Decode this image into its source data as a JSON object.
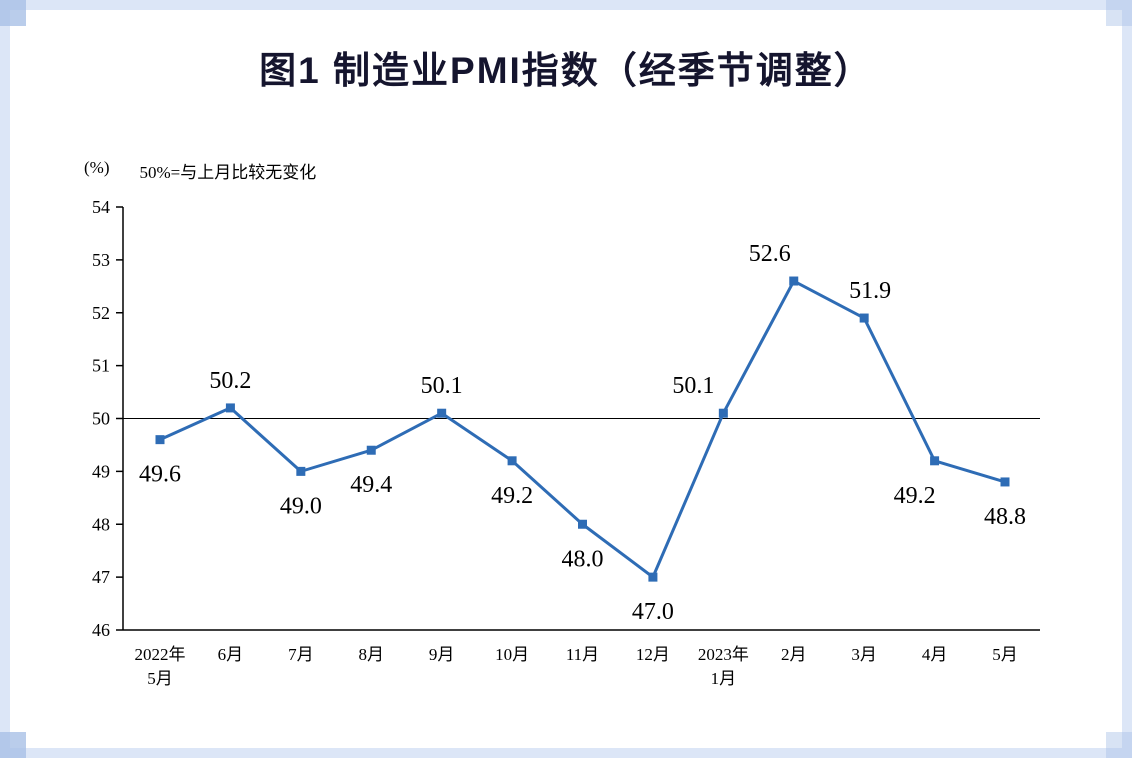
{
  "chart_data": {
    "type": "line",
    "title": "图1 制造业PMI指数（经季节调整）",
    "unit_label": "(%)",
    "note": "50%=与上月比较无变化",
    "categories": [
      [
        "2022年",
        "5月"
      ],
      [
        "6月"
      ],
      [
        "7月"
      ],
      [
        "8月"
      ],
      [
        "9月"
      ],
      [
        "10月"
      ],
      [
        "11月"
      ],
      [
        "12月"
      ],
      [
        "2023年",
        "1月"
      ],
      [
        "2月"
      ],
      [
        "3月"
      ],
      [
        "4月"
      ],
      [
        "5月"
      ]
    ],
    "values": [
      49.6,
      50.2,
      49.0,
      49.4,
      50.1,
      49.2,
      48.0,
      47.0,
      50.1,
      52.6,
      51.9,
      49.2,
      48.8
    ],
    "ylim": [
      46,
      54
    ],
    "yticks": [
      46,
      47,
      48,
      49,
      50,
      51,
      52,
      53,
      54
    ],
    "reference_line": 50,
    "line_color": "#2e6cb5",
    "marker": "square",
    "axis_color": "#000000",
    "text_color": "#000000",
    "label_dx": [
      0,
      0,
      0,
      0,
      0,
      0,
      0,
      0,
      -30,
      -24,
      6,
      -20,
      0
    ],
    "grid": false,
    "legend": "none"
  }
}
